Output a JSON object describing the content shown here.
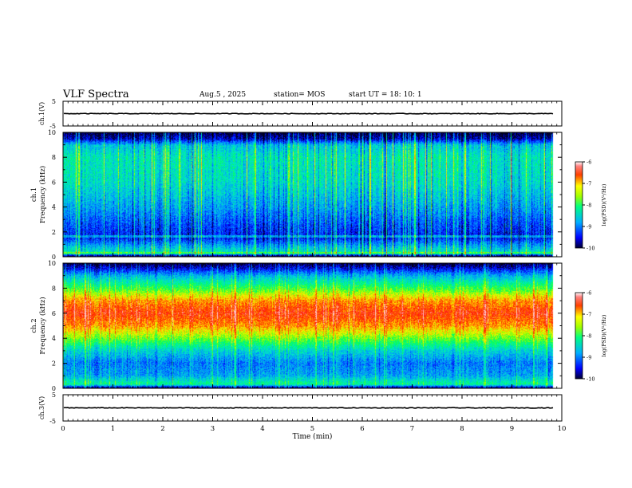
{
  "header": {
    "title": "VLF Spectra",
    "date": "Aug.5 , 2025",
    "station": "station= MOS",
    "start_ut": "start UT = 18: 10: 1"
  },
  "chart_data": [
    {
      "type": "line",
      "name": "ch.1 waveform",
      "ylabel": "ch.1(V)",
      "yticks": [
        "5",
        "-5"
      ],
      "ylim": [
        -5,
        5
      ],
      "xlim": [
        0,
        10
      ],
      "level": 0
    },
    {
      "type": "heatmap",
      "name": "ch.1 spectrogram",
      "ylabel": "ch.1\nFrequency (kHz)",
      "ylim": [
        0,
        10
      ],
      "yticks": [
        "0",
        "2",
        "4",
        "6",
        "8",
        "10"
      ],
      "xlim": [
        0,
        10
      ],
      "data_end_min": 9.83,
      "colorbar": {
        "min": -10,
        "max": -6,
        "ticks": [
          "-6",
          "-7",
          "-8",
          "-9",
          "-10"
        ],
        "label": "log(PSD)(V²/Hz)"
      },
      "profile": [
        {
          "f": 0.0,
          "v": -9.9
        },
        {
          "f": 0.3,
          "v": -8.4
        },
        {
          "f": 0.8,
          "v": -8.8
        },
        {
          "f": 1.5,
          "v": -9.5
        },
        {
          "f": 2.5,
          "v": -9.3
        },
        {
          "f": 4.0,
          "v": -8.9
        },
        {
          "f": 6.0,
          "v": -8.5
        },
        {
          "f": 8.0,
          "v": -8.4
        },
        {
          "f": 9.0,
          "v": -8.7
        },
        {
          "f": 9.5,
          "v": -9.7
        },
        {
          "f": 10.0,
          "v": -10.0
        }
      ]
    },
    {
      "type": "heatmap",
      "name": "ch.2 spectrogram",
      "ylabel": "ch.2\nFrequency (kHz)",
      "ylim": [
        0,
        10
      ],
      "yticks": [
        "0",
        "2",
        "4",
        "6",
        "8",
        "10"
      ],
      "xlim": [
        0,
        10
      ],
      "data_end_min": 9.83,
      "colorbar": {
        "min": -10,
        "max": -6,
        "ticks": [
          "-6",
          "-7",
          "-8",
          "-9",
          "-10"
        ],
        "label": "log(PSD)(V²/Hz)"
      },
      "profile": [
        {
          "f": 0.0,
          "v": -9.9
        },
        {
          "f": 0.3,
          "v": -8.2
        },
        {
          "f": 1.0,
          "v": -8.9
        },
        {
          "f": 2.0,
          "v": -9.1
        },
        {
          "f": 3.0,
          "v": -8.6
        },
        {
          "f": 4.0,
          "v": -7.7
        },
        {
          "f": 5.0,
          "v": -6.9
        },
        {
          "f": 6.0,
          "v": -6.5
        },
        {
          "f": 7.0,
          "v": -6.9
        },
        {
          "f": 8.0,
          "v": -7.9
        },
        {
          "f": 9.0,
          "v": -8.8
        },
        {
          "f": 9.6,
          "v": -9.6
        },
        {
          "f": 10.0,
          "v": -10.0
        }
      ]
    },
    {
      "type": "line",
      "name": "ch.3 waveform",
      "ylabel": "ch.3(V)",
      "yticks": [
        "5",
        "-5"
      ],
      "ylim": [
        -5,
        5
      ],
      "xlim": [
        0,
        10
      ],
      "level": 0
    }
  ],
  "xaxis": {
    "label": "Time (min)",
    "ticks": [
      "0",
      "1",
      "2",
      "3",
      "4",
      "5",
      "6",
      "7",
      "8",
      "9",
      "10"
    ]
  }
}
